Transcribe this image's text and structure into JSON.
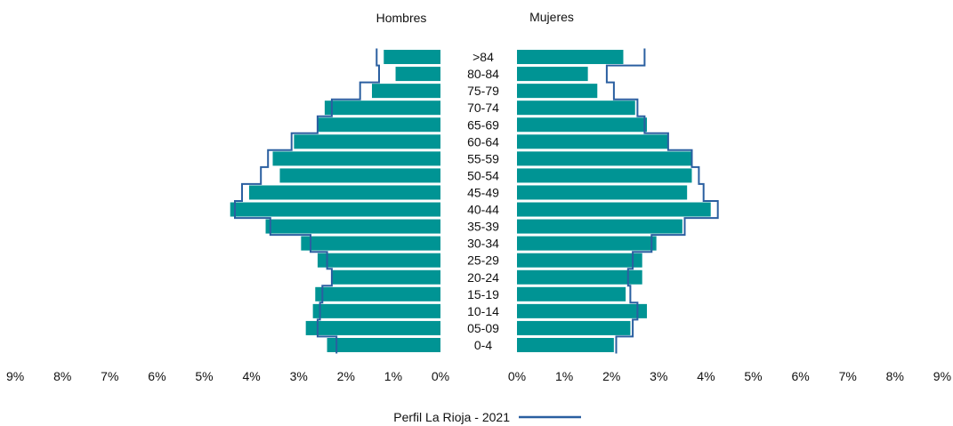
{
  "chart_data": {
    "type": "bar",
    "subtype": "population-pyramid",
    "panels": [
      {
        "title": "Hombres",
        "side": "left"
      },
      {
        "title": "Mujeres",
        "side": "right"
      }
    ],
    "categories": [
      "0-4",
      "05-09",
      "10-14",
      "15-19",
      "20-24",
      "25-29",
      "30-34",
      "35-39",
      "40-44",
      "45-49",
      "50-54",
      "55-59",
      "60-64",
      "65-69",
      "70-74",
      "75-79",
      "80-84",
      ">84"
    ],
    "series": [
      {
        "group": "Hombres",
        "kind": "bars",
        "values": [
          2.4,
          2.85,
          2.7,
          2.65,
          2.3,
          2.6,
          2.95,
          3.7,
          4.45,
          4.05,
          3.4,
          3.55,
          3.1,
          2.6,
          2.45,
          1.45,
          0.95,
          1.2
        ]
      },
      {
        "group": "Mujeres",
        "kind": "bars",
        "values": [
          2.05,
          2.4,
          2.75,
          2.3,
          2.65,
          2.65,
          2.95,
          3.5,
          4.1,
          3.6,
          3.7,
          3.7,
          3.2,
          2.75,
          2.5,
          1.7,
          1.5,
          2.25
        ]
      },
      {
        "name": "Perfil La Rioja - 2021",
        "group": "Hombres",
        "kind": "line",
        "values": [
          2.2,
          2.6,
          2.55,
          2.5,
          2.3,
          2.4,
          2.75,
          3.6,
          4.35,
          4.2,
          3.8,
          3.65,
          3.15,
          2.6,
          2.3,
          1.7,
          1.3,
          1.35
        ]
      },
      {
        "name": "Perfil La Rioja - 2021",
        "group": "Mujeres",
        "kind": "line",
        "values": [
          2.1,
          2.45,
          2.55,
          2.4,
          2.35,
          2.45,
          2.85,
          3.55,
          4.25,
          3.95,
          3.85,
          3.7,
          3.2,
          2.7,
          2.55,
          2.05,
          1.9,
          2.7
        ]
      }
    ],
    "x_ticks": [
      "0%",
      "1%",
      "2%",
      "3%",
      "4%",
      "5%",
      "6%",
      "7%",
      "8%",
      "9%"
    ],
    "xlim": [
      0,
      9
    ],
    "legend": {
      "label": "Perfil La Rioja - 2021",
      "position": "bottom-center"
    },
    "grid": false,
    "colors": {
      "bars": "#009494",
      "line": "#2a5fa0"
    }
  }
}
